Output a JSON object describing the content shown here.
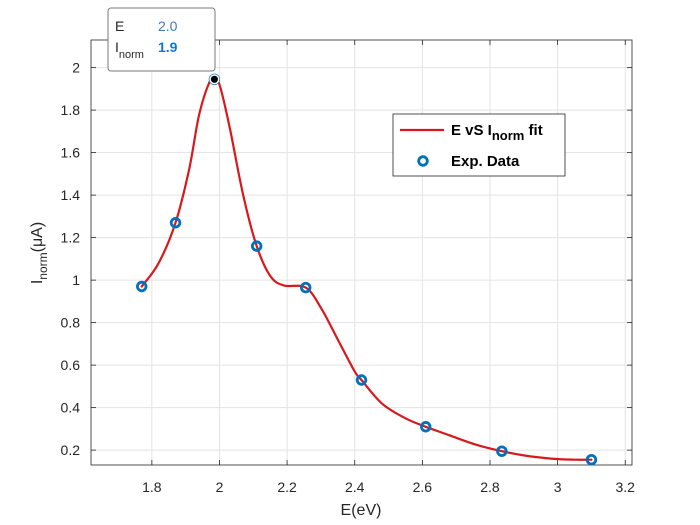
{
  "chart_data": {
    "type": "line",
    "title": "",
    "xlabel": "E(eV)",
    "ylabel": {
      "main": "I",
      "sub": "norm",
      "unit": "(μA)"
    },
    "xlim": [
      1.62,
      3.22
    ],
    "ylim": [
      0.13,
      2.13
    ],
    "xticks": [
      1.8,
      2.0,
      2.2,
      2.4,
      2.6,
      2.8,
      3.0,
      3.2
    ],
    "xtick_labels": [
      "1.8",
      "2",
      "2.2",
      "2.4",
      "2.6",
      "2.8",
      "3",
      "3.2"
    ],
    "yticks": [
      0.2,
      0.4,
      0.6,
      0.8,
      1.0,
      1.2,
      1.4,
      1.6,
      1.8,
      2.0
    ],
    "ytick_labels": [
      "0.2",
      "0.4",
      "0.6",
      "0.8",
      "1",
      "1.2",
      "1.4",
      "1.6",
      "1.8",
      "2"
    ],
    "grid": true,
    "legend_position": "top-right",
    "series": [
      {
        "name": "E vS I norm fit",
        "legend": {
          "prefix": "E vS I",
          "sub": "norm",
          "suffix": " fit"
        },
        "kind": "line",
        "color": "#d7191c",
        "x": [
          1.77,
          1.82,
          1.87,
          1.91,
          1.94,
          1.97,
          1.985,
          2.0,
          2.03,
          2.07,
          2.11,
          2.15,
          2.19,
          2.255,
          2.3,
          2.35,
          2.4,
          2.42,
          2.48,
          2.55,
          2.61,
          2.68,
          2.76,
          2.835,
          2.9,
          2.98,
          3.05,
          3.1
        ],
        "y": [
          0.97,
          1.08,
          1.27,
          1.52,
          1.78,
          1.93,
          1.945,
          1.92,
          1.72,
          1.4,
          1.16,
          1.02,
          0.975,
          0.965,
          0.87,
          0.72,
          0.57,
          0.53,
          0.42,
          0.35,
          0.31,
          0.27,
          0.225,
          0.195,
          0.175,
          0.16,
          0.155,
          0.155
        ]
      },
      {
        "name": "Exp. Data",
        "kind": "scatter",
        "color": "#0072bd",
        "x": [
          1.77,
          1.87,
          1.985,
          2.11,
          2.255,
          2.42,
          2.61,
          2.835,
          3.1
        ],
        "y": [
          0.97,
          1.27,
          1.945,
          1.16,
          0.965,
          0.53,
          0.31,
          0.195,
          0.155
        ]
      }
    ],
    "datatip": {
      "x_name": "E",
      "x_value": "2.0",
      "y_name": "I",
      "y_sub": "norm",
      "y_value": "1.9",
      "x_color": "#3a7cc0",
      "y_color": "#0a7bd6"
    }
  }
}
